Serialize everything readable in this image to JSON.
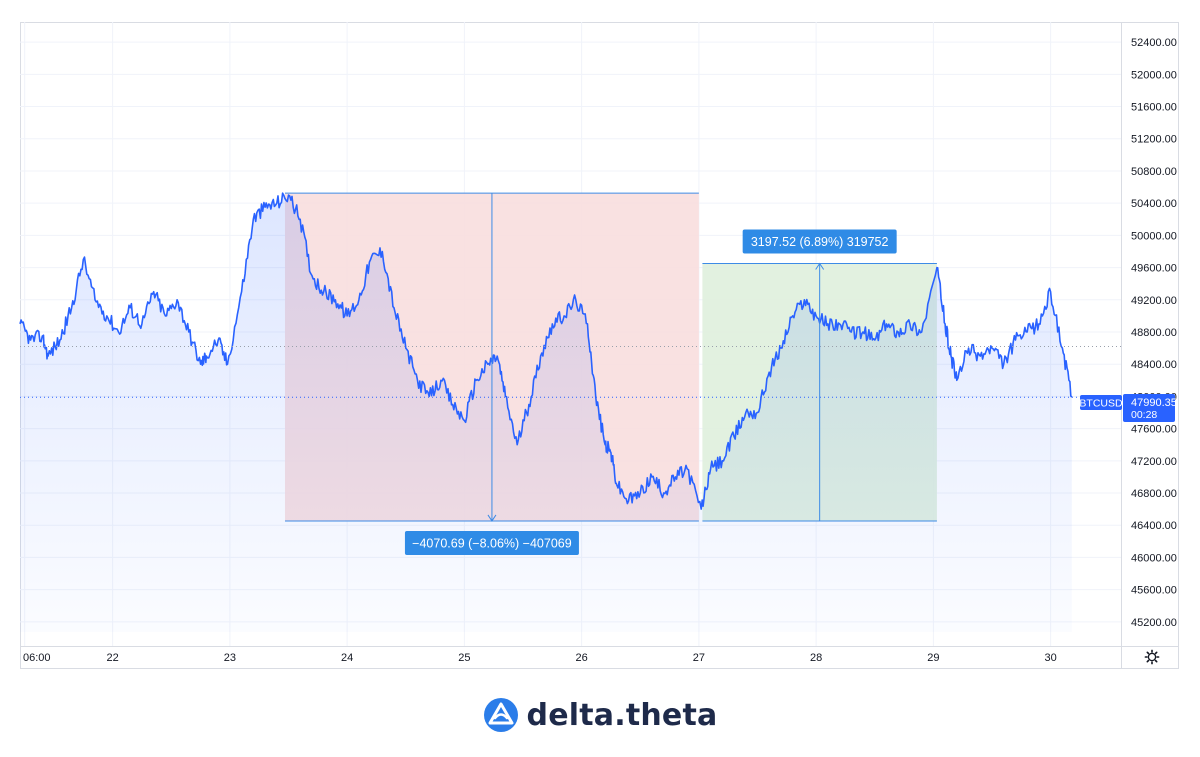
{
  "chart_data": {
    "type": "line",
    "symbol": "BTCUSD",
    "last_price": "47990.35",
    "countdown": "00:28",
    "x_tick_labels": [
      "06:00",
      "22",
      "23",
      "24",
      "25",
      "26",
      "27",
      "28",
      "29",
      "30"
    ],
    "y_tick_labels": [
      "52400.00",
      "52000.00",
      "51600.00",
      "51200.00",
      "50800.00",
      "50400.00",
      "50000.00",
      "49600.00",
      "49200.00",
      "48800.00",
      "48400.00",
      "48000.00",
      "47600.00",
      "47200.00",
      "46800.00",
      "46400.00",
      "46000.00",
      "45600.00",
      "45200.00"
    ],
    "ylim": [
      44900,
      52650
    ],
    "xlim": [
      21.21,
      30.6
    ],
    "grid": true,
    "colors": {
      "line": "#2962ff",
      "loss_zone": "#f8dede",
      "gain_zone": "#dff0dd",
      "label_bg": "#2f8be6"
    },
    "series": [
      {
        "x": [
          21.21,
          21.3,
          21.4,
          21.45,
          21.55,
          21.65,
          21.75,
          21.85,
          21.95,
          22.05,
          22.15,
          22.25,
          22.35,
          22.45,
          22.55,
          22.65,
          22.75,
          22.8,
          22.9,
          22.98,
          23.1,
          23.2,
          23.3,
          23.4,
          23.5,
          23.6,
          23.7,
          23.8,
          23.9,
          24.0,
          24.1,
          24.2,
          24.3,
          24.4,
          24.5,
          24.6,
          24.7,
          24.8,
          24.9,
          25.0,
          25.1,
          25.2,
          25.28,
          25.35,
          25.45,
          25.55,
          25.65,
          25.75,
          25.85,
          25.95,
          26.05,
          26.12,
          26.2,
          26.25,
          26.3,
          26.4,
          26.5,
          26.6,
          26.7,
          26.8,
          26.9,
          27.02,
          27.1,
          27.2,
          27.3,
          27.4,
          27.5,
          27.6,
          27.7,
          27.8,
          27.9,
          28.0,
          28.1,
          28.2,
          28.3,
          28.4,
          28.5,
          28.6,
          28.7,
          28.8,
          28.9,
          29.03,
          29.1,
          29.15,
          29.2,
          29.3,
          29.4,
          29.5,
          29.6,
          29.7,
          29.8,
          29.9,
          30.0,
          30.1,
          30.18
        ],
        "y": [
          48900,
          48700,
          48750,
          48500,
          48700,
          49100,
          49700,
          49200,
          49000,
          48800,
          49100,
          48900,
          49300,
          49000,
          49200,
          48800,
          48400,
          48500,
          48700,
          48400,
          49300,
          50200,
          50350,
          50400,
          50500,
          50200,
          49500,
          49300,
          49200,
          49000,
          49200,
          49700,
          49800,
          49100,
          48600,
          48200,
          48000,
          48200,
          47900,
          47700,
          48200,
          48400,
          48500,
          48000,
          47400,
          47900,
          48500,
          48900,
          49000,
          49200,
          48900,
          48000,
          47400,
          47300,
          46900,
          46700,
          46800,
          47000,
          46800,
          47000,
          47100,
          46600,
          47100,
          47200,
          47500,
          47800,
          47800,
          48300,
          48600,
          49000,
          49200,
          49000,
          48900,
          48900,
          48800,
          48800,
          48700,
          48900,
          48800,
          48900,
          48800,
          49600,
          48900,
          48500,
          48200,
          48600,
          48500,
          48600,
          48400,
          48700,
          48800,
          48900,
          49300,
          48600,
          47990
        ]
      }
    ],
    "measurements": [
      {
        "label": "−4070.69 (−8.06%) −407069",
        "x_start": 23.47,
        "x_end": 27.0,
        "y_top": 50524,
        "y_bottom": 46453
      },
      {
        "label": "3197.52 (6.89%) 319752",
        "x_start": 27.03,
        "x_end": 29.03,
        "y_top": 49651,
        "y_bottom": 46453
      }
    ]
  },
  "brand": {
    "name": "delta.theta",
    "logo_icon": "delta-theta-logo-icon"
  }
}
